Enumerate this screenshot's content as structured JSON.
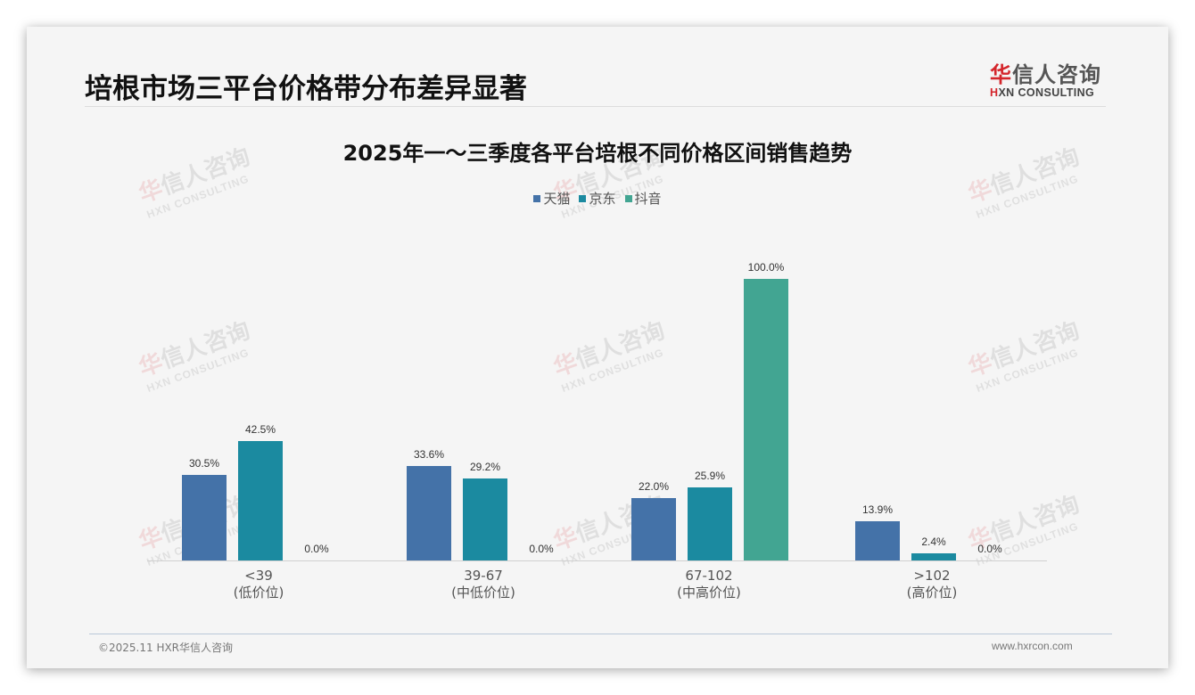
{
  "slide": {
    "title": "培根市场三平台价格带分布差异显著",
    "logo": {
      "cn_red": "华",
      "cn_rest": "信人咨询",
      "en_red": "H",
      "en_rest": "XN CONSULTING"
    },
    "watermark": {
      "cn_red": "华",
      "cn_rest": "信人咨询",
      "en": "HXN CONSULTING"
    },
    "footer": {
      "copyright": "©2025.11 HXR华信人咨询",
      "website": "www.hxrcon.com"
    }
  },
  "colors": {
    "tmall": "#4472a8",
    "jd": "#1b8aa0",
    "douyin": "#42a592",
    "background": "#f5f5f5"
  },
  "chart_data": {
    "type": "bar",
    "title": "2025年一～三季度各平台培根不同价格区间销售趋势",
    "xlabel": "",
    "ylabel": "",
    "ylim": [
      0,
      100
    ],
    "grid": false,
    "legend_position": "top",
    "categories": [
      "<39\n(低价位)",
      "39-67\n(中低价位)",
      "67-102\n(中高价位)",
      ">102\n(高价位)"
    ],
    "category_labels": [
      {
        "range": "<39",
        "tier": "(低价位)"
      },
      {
        "range": "39-67",
        "tier": "(中低价位)"
      },
      {
        "range": "67-102",
        "tier": "(中高价位)"
      },
      {
        "range": ">102",
        "tier": "(高价位)"
      }
    ],
    "series": [
      {
        "name": "天猫",
        "values": [
          30.5,
          33.6,
          22.0,
          13.9
        ],
        "labels": [
          "30.5%",
          "33.6%",
          "22.0%",
          "13.9%"
        ]
      },
      {
        "name": "京东",
        "values": [
          42.5,
          29.2,
          25.9,
          2.4
        ],
        "labels": [
          "42.5%",
          "29.2%",
          "25.9%",
          "2.4%"
        ]
      },
      {
        "name": "抖音",
        "values": [
          0.0,
          0.0,
          100.0,
          0.0
        ],
        "labels": [
          "0.0%",
          "0.0%",
          "100.0%",
          "0.0%"
        ]
      }
    ]
  }
}
